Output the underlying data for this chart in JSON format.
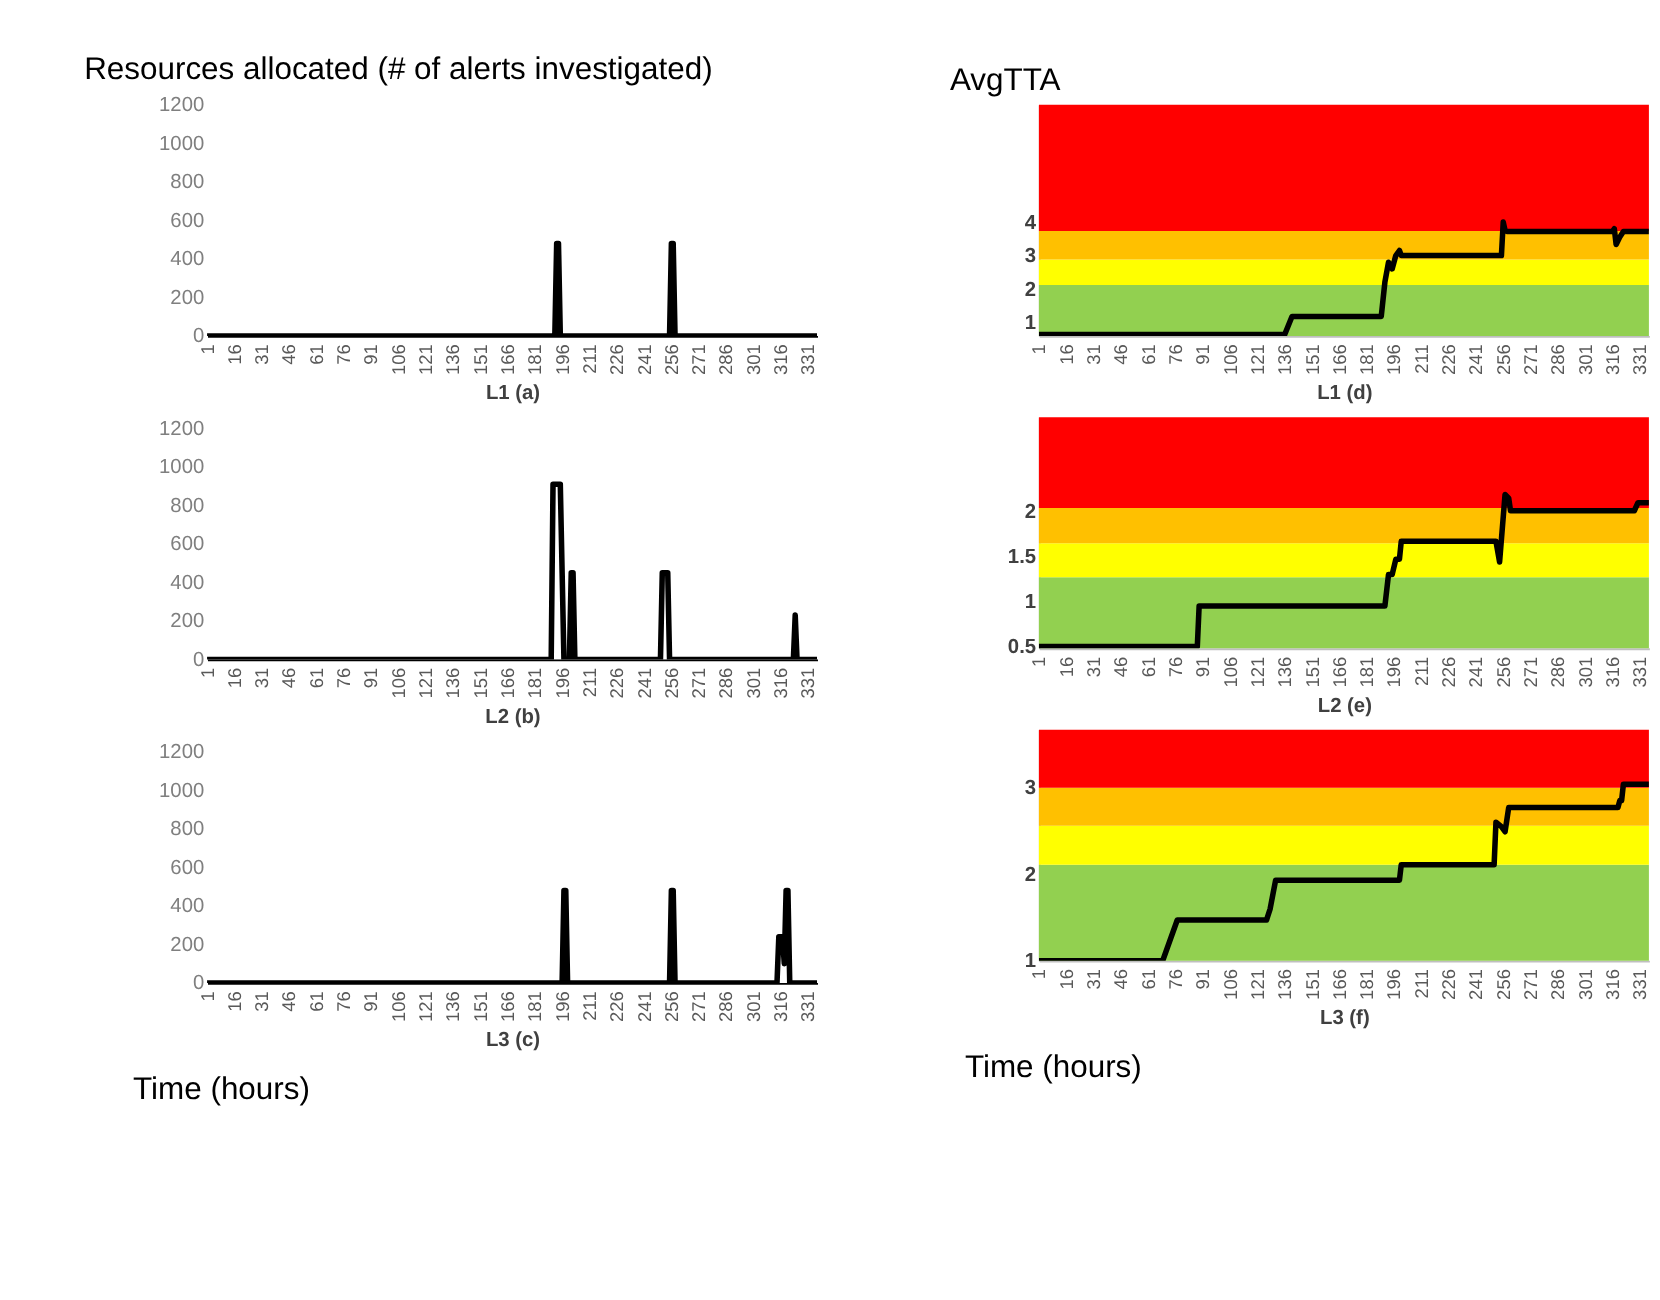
{
  "chart_data": [
    {
      "type": "line",
      "title": "Resources allocated (# of alerts investigated)",
      "xlabel": "L1   (a)",
      "xlim": [
        1,
        336
      ],
      "xticks": [
        1,
        16,
        31,
        46,
        61,
        76,
        91,
        106,
        121,
        136,
        151,
        166,
        181,
        196,
        211,
        226,
        241,
        256,
        271,
        286,
        301,
        316,
        331
      ],
      "ylim": [
        0,
        1200
      ],
      "yticks": [
        0,
        200,
        400,
        600,
        800,
        1000,
        1200
      ],
      "series": [
        {
          "color": "#000000",
          "x": [
            1,
            192,
            193,
            194,
            195,
            255,
            256,
            257,
            258,
            336
          ],
          "values": [
            0,
            0,
            480,
            480,
            0,
            0,
            480,
            480,
            0,
            0
          ]
        }
      ]
    },
    {
      "type": "line",
      "xlabel": "L2    (b)",
      "xlim": [
        1,
        336
      ],
      "xticks": [
        1,
        16,
        31,
        46,
        61,
        76,
        91,
        106,
        121,
        136,
        151,
        166,
        181,
        196,
        211,
        226,
        241,
        256,
        271,
        286,
        301,
        316,
        331
      ],
      "ylim": [
        0,
        1200
      ],
      "yticks": [
        0,
        200,
        400,
        600,
        800,
        1000,
        1200
      ],
      "series": [
        {
          "color": "#000000",
          "x": [
            1,
            190,
            191,
            195,
            196,
            197,
            200,
            201,
            202,
            203,
            250,
            251,
            254,
            255,
            323,
            324,
            325,
            336
          ],
          "values": [
            0,
            0,
            910,
            910,
            450,
            0,
            0,
            450,
            450,
            0,
            0,
            450,
            450,
            0,
            0,
            230,
            0,
            0
          ]
        }
      ]
    },
    {
      "type": "line",
      "xlabel": "L3    (c)",
      "xlim": [
        1,
        336
      ],
      "xticks": [
        1,
        16,
        31,
        46,
        61,
        76,
        91,
        106,
        121,
        136,
        151,
        166,
        181,
        196,
        211,
        226,
        241,
        256,
        271,
        286,
        301,
        316,
        331
      ],
      "ylim": [
        0,
        1200
      ],
      "yticks": [
        0,
        200,
        400,
        600,
        800,
        1000,
        1200
      ],
      "annotations": [
        "Time (hours)"
      ],
      "series": [
        {
          "color": "#000000",
          "x": [
            1,
            196,
            197,
            198,
            199,
            255,
            256,
            257,
            258,
            314,
            315,
            317,
            318,
            319,
            320,
            321,
            336
          ],
          "values": [
            0,
            0,
            480,
            480,
            0,
            0,
            480,
            480,
            0,
            0,
            240,
            240,
            100,
            480,
            480,
            0,
            0
          ]
        }
      ]
    },
    {
      "type": "line",
      "title": "AvgTTA",
      "xlabel": "L1 (d)",
      "xlim": [
        1,
        336
      ],
      "xticks": [
        1,
        16,
        31,
        46,
        61,
        76,
        91,
        106,
        121,
        136,
        151,
        166,
        181,
        196,
        211,
        226,
        241,
        256,
        271,
        286,
        301,
        316,
        331
      ],
      "ylim": [
        0.6,
        7.5
      ],
      "yticks": [
        1,
        2,
        3,
        4
      ],
      "bands": [
        {
          "axis": "y",
          "from": 0.6,
          "to": 2.12,
          "color": "#92d050"
        },
        {
          "axis": "y",
          "from": 2.12,
          "to": 2.88,
          "color": "#ffff00"
        },
        {
          "axis": "y",
          "from": 2.88,
          "to": 3.73,
          "color": "#ffc000"
        },
        {
          "axis": "y",
          "from": 3.73,
          "to": 7.5,
          "color": "#ff0000"
        }
      ],
      "series": [
        {
          "color": "#000000",
          "x": [
            1,
            136,
            140,
            189,
            191,
            193,
            195,
            197,
            199,
            200,
            255,
            256,
            257,
            258,
            316,
            317,
            318,
            320,
            322,
            336
          ],
          "values": [
            0.64,
            0.64,
            1.18,
            1.18,
            2.2,
            2.8,
            2.6,
            3.0,
            3.15,
            3.0,
            3.0,
            4.0,
            3.75,
            3.72,
            3.72,
            3.8,
            3.33,
            3.55,
            3.72,
            3.72
          ]
        }
      ]
    },
    {
      "type": "line",
      "xlabel": "L2 (e)",
      "xlim": [
        1,
        336
      ],
      "xticks": [
        1,
        16,
        31,
        46,
        61,
        76,
        91,
        106,
        121,
        136,
        151,
        166,
        181,
        196,
        211,
        226,
        241,
        256,
        271,
        286,
        301,
        316,
        331
      ],
      "ylim": [
        0.48,
        3.05
      ],
      "yticks": [
        0.5,
        1,
        1.5,
        2
      ],
      "bands": [
        {
          "axis": "y",
          "from": 0.48,
          "to": 1.27,
          "color": "#92d050"
        },
        {
          "axis": "y",
          "from": 1.27,
          "to": 1.65,
          "color": "#ffff00"
        },
        {
          "axis": "y",
          "from": 1.65,
          "to": 2.04,
          "color": "#ffc000"
        },
        {
          "axis": "y",
          "from": 2.04,
          "to": 3.05,
          "color": "#ff0000"
        }
      ],
      "series": [
        {
          "color": "#000000",
          "x": [
            1,
            88,
            89,
            191,
            193,
            195,
            197,
            199,
            200,
            252,
            254,
            257,
            259,
            260,
            328,
            330,
            336
          ],
          "values": [
            0.5,
            0.5,
            0.95,
            0.95,
            1.3,
            1.3,
            1.47,
            1.47,
            1.67,
            1.67,
            1.44,
            2.19,
            2.15,
            2.01,
            2.01,
            2.1,
            2.1
          ]
        }
      ]
    },
    {
      "type": "line",
      "xlabel": "L3 (f)",
      "xlim": [
        1,
        336
      ],
      "xticks": [
        1,
        16,
        31,
        46,
        61,
        76,
        91,
        106,
        121,
        136,
        151,
        166,
        181,
        196,
        211,
        226,
        241,
        256,
        271,
        286,
        301,
        316,
        331
      ],
      "ylim": [
        1,
        3.67
      ],
      "yticks": [
        1,
        2,
        3
      ],
      "annotations": [
        "Time (hours)"
      ],
      "bands": [
        {
          "axis": "y",
          "from": 1,
          "to": 2.11,
          "color": "#92d050"
        },
        {
          "axis": "y",
          "from": 2.11,
          "to": 2.56,
          "color": "#ffff00"
        },
        {
          "axis": "y",
          "from": 2.56,
          "to": 3.0,
          "color": "#ffc000"
        },
        {
          "axis": "y",
          "from": 3.0,
          "to": 3.67,
          "color": "#ff0000"
        }
      ],
      "series": [
        {
          "color": "#000000",
          "x": [
            1,
            69,
            77,
            126,
            128,
            131,
            199,
            200,
            251,
            252,
            255,
            257,
            259,
            319,
            320,
            321,
            322,
            336
          ],
          "values": [
            1,
            1,
            1.47,
            1.47,
            1.6,
            1.93,
            1.93,
            2.11,
            2.11,
            2.6,
            2.55,
            2.49,
            2.77,
            2.77,
            2.85,
            2.85,
            3.04,
            3.04
          ]
        }
      ]
    }
  ]
}
